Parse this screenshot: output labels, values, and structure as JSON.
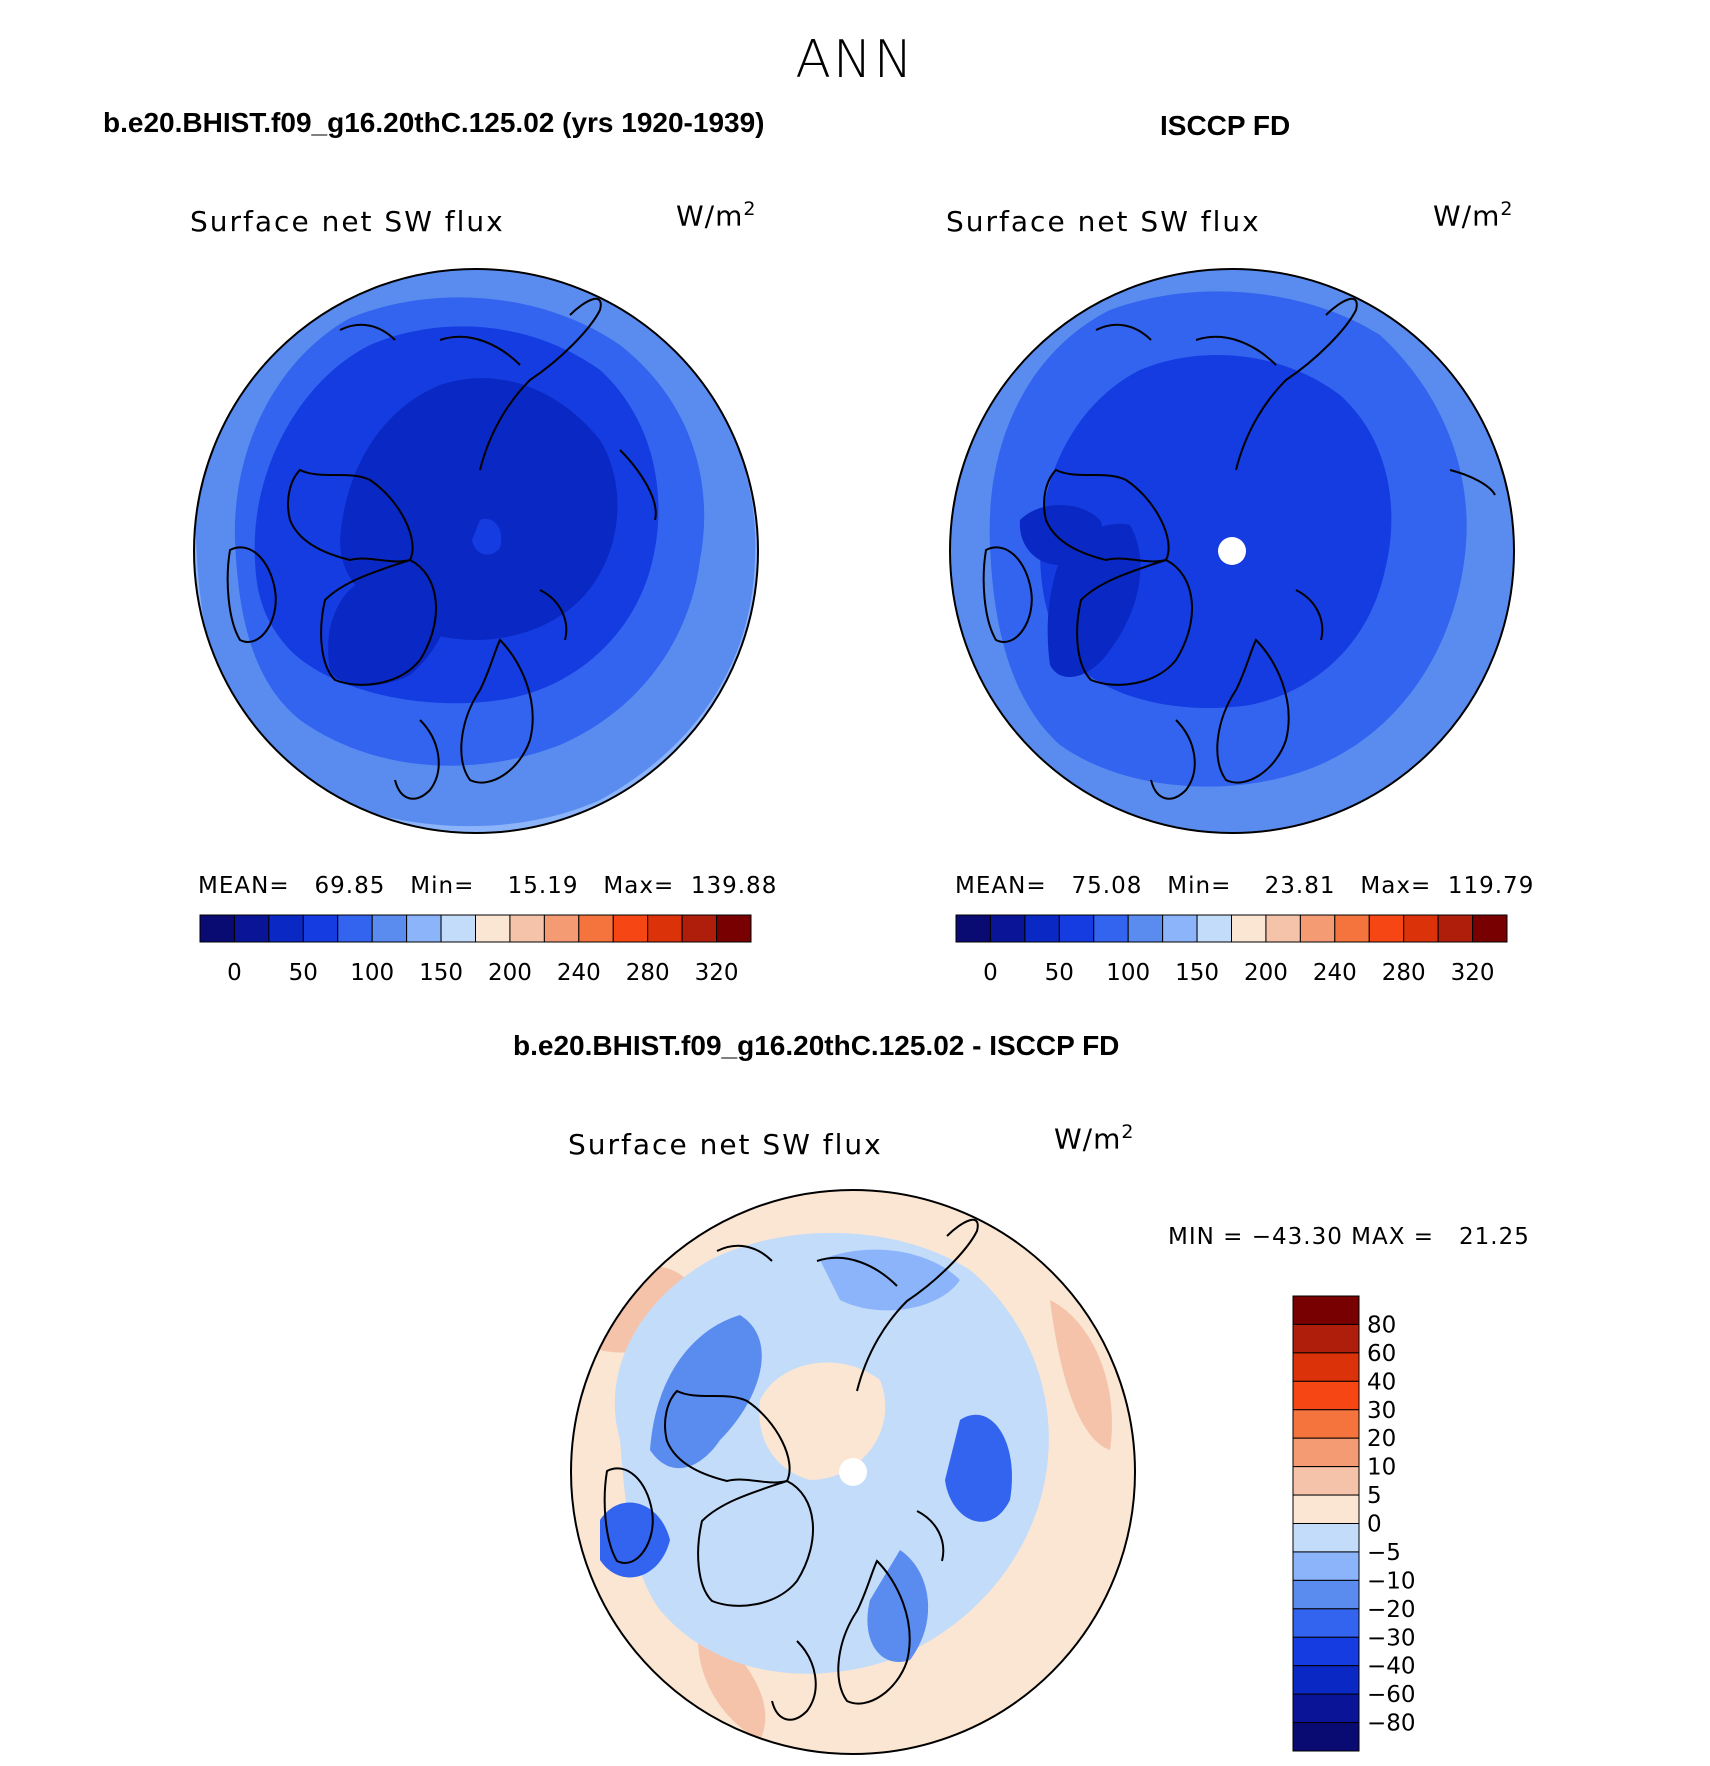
{
  "figure": {
    "season": "ANN",
    "panel_left": {
      "case_title": "b.e20.BHIST.f09_g16.20thC.125.02 (yrs 1920-1939)",
      "variable": "Surface net SW flux",
      "units": "W/m",
      "units_exp": "2",
      "stats_text": "MEAN=   69.85   Min=    15.19   Max=  139.88"
    },
    "panel_right": {
      "case_title": "ISCCP FD",
      "variable": "Surface net SW flux",
      "units": "W/m",
      "units_exp": "2",
      "stats_text": "MEAN=   75.08   Min=    23.81   Max=  119.79"
    },
    "panel_diff": {
      "case_title": "b.e20.BHIST.f09_g16.20thC.125.02 - ISCCP FD",
      "variable": "Surface net SW flux",
      "units": "W/m",
      "units_exp": "2",
      "stats_text": "MIN = −43.30 MAX =   21.25"
    }
  },
  "chart_data": [
    {
      "type": "heatmap",
      "projection": "north polar stereographic",
      "title": "b.e20.BHIST.f09_g16.20thC.125.02 (yrs 1920-1939)",
      "variable": "Surface net SW flux",
      "units": "W/m2",
      "stats": {
        "mean": 69.85,
        "min": 15.19,
        "max": 139.88
      },
      "colorbar": {
        "orientation": "horizontal",
        "tick_labels": [
          "0",
          "50",
          "100",
          "150",
          "200",
          "240",
          "280",
          "320"
        ],
        "colors": [
          "#0a0a73",
          "#0a1496",
          "#0a28c3",
          "#143ce1",
          "#3264f0",
          "#5a8cf0",
          "#8cb4fa",
          "#c3dcfa",
          "#fae6d2",
          "#f5c3aa",
          "#f59b73",
          "#f5733c",
          "#f54614",
          "#dc320a",
          "#af1e0a",
          "#780000"
        ]
      },
      "field_levels": [
        {
          "range": "50-100",
          "color": "#0a28c3",
          "region": "central Arctic, Greenland"
        },
        {
          "range": "50-100",
          "color": "#143ce1",
          "region": "Canadian archipelago, Siberia"
        },
        {
          "range": "100-150",
          "color": "#3264f0",
          "region": "subarctic land & ocean"
        },
        {
          "range": "100-150",
          "color": "#5a8cf0",
          "region": "outer ring ~60N"
        },
        {
          "range": "150-200",
          "color": "#8cb4fa",
          "region": "outer edge"
        }
      ]
    },
    {
      "type": "heatmap",
      "projection": "north polar stereographic",
      "title": "ISCCP FD",
      "variable": "Surface net SW flux",
      "units": "W/m2",
      "stats": {
        "mean": 75.08,
        "min": 23.81,
        "max": 119.79
      },
      "colorbar": {
        "orientation": "horizontal",
        "tick_labels": [
          "0",
          "50",
          "100",
          "150",
          "200",
          "240",
          "280",
          "320"
        ],
        "colors": [
          "#0a0a73",
          "#0a1496",
          "#0a28c3",
          "#143ce1",
          "#3264f0",
          "#5a8cf0",
          "#8cb4fa",
          "#c3dcfa",
          "#fae6d2",
          "#f5c3aa",
          "#f59b73",
          "#f5733c",
          "#f54614",
          "#dc320a",
          "#af1e0a",
          "#780000"
        ]
      },
      "field_levels": [
        {
          "range": "50-100",
          "color": "#0a28c3",
          "region": "Greenland, Canadian archipelago"
        },
        {
          "range": "50-100",
          "color": "#143ce1",
          "region": "central Arctic Ocean"
        },
        {
          "range": "100-150",
          "color": "#3264f0",
          "region": "subarctic"
        },
        {
          "range": "100-150",
          "color": "#5a8cf0",
          "region": "outer ring"
        }
      ]
    },
    {
      "type": "heatmap",
      "projection": "north polar stereographic",
      "title": "b.e20.BHIST.f09_g16.20thC.125.02 - ISCCP FD",
      "variable": "Surface net SW flux",
      "units": "W/m2",
      "stats": {
        "min": -43.3,
        "max": 21.25
      },
      "colorbar": {
        "orientation": "vertical",
        "tick_labels": [
          "80",
          "60",
          "40",
          "30",
          "20",
          "10",
          "5",
          "0",
          "−5",
          "−10",
          "−20",
          "−30",
          "−40",
          "−60",
          "−80"
        ],
        "colors": [
          "#780000",
          "#af1e0a",
          "#dc320a",
          "#f54614",
          "#f5733c",
          "#f59b73",
          "#f5c3aa",
          "#fae6d2",
          "#c3dcfa",
          "#8cb4fa",
          "#5a8cf0",
          "#3264f0",
          "#143ce1",
          "#0a28c3",
          "#0a1496",
          "#0a0a73"
        ]
      },
      "field_levels": [
        {
          "range": "0-5",
          "color": "#fae6d2",
          "region": "outer ring, central Arctic"
        },
        {
          "range": "5-10",
          "color": "#f5c3aa",
          "region": "North Atlantic, Pacific edge"
        },
        {
          "range": "-5-0",
          "color": "#c3dcfa",
          "region": "Arctic Ocean"
        },
        {
          "range": "-10--5",
          "color": "#8cb4fa",
          "region": "Siberia, Canada"
        },
        {
          "range": "-20--10",
          "color": "#5a8cf0",
          "region": "continental interiors"
        },
        {
          "range": "-30--20",
          "color": "#3264f0",
          "region": "Canadian archipelago, Scandinavia"
        }
      ]
    }
  ]
}
